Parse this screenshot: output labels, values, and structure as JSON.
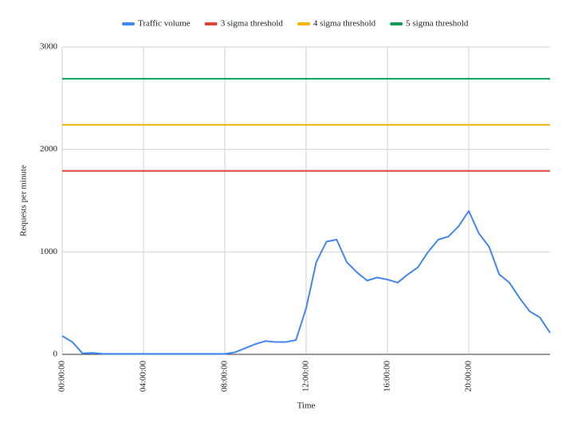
{
  "chart_data": {
    "type": "line",
    "x_label": "Time",
    "y_label": "Requests per minute",
    "x": [
      0,
      0.5,
      1,
      1.5,
      2,
      2.5,
      3,
      3.5,
      4,
      4.5,
      5,
      5.5,
      6,
      6.5,
      7,
      7.5,
      8,
      8.5,
      9,
      9.5,
      10,
      10.5,
      11,
      11.5,
      12,
      12.5,
      13,
      13.5,
      14,
      14.5,
      15,
      15.5,
      16,
      16.5,
      17,
      17.5,
      18,
      18.5,
      19,
      19.5,
      20,
      20.5,
      21,
      21.5,
      22,
      22.5,
      23,
      23.5,
      24
    ],
    "series": [
      {
        "name": "Traffic volume",
        "color": "#4285f4",
        "values": [
          180,
          120,
          10,
          15,
          5,
          5,
          5,
          5,
          5,
          5,
          5,
          5,
          5,
          5,
          5,
          5,
          5,
          20,
          60,
          100,
          130,
          120,
          120,
          140,
          450,
          900,
          1100,
          1120,
          900,
          800,
          720,
          750,
          730,
          700,
          780,
          850,
          1000,
          1120,
          1150,
          1250,
          1400,
          1180,
          1050,
          780,
          700,
          550,
          420,
          360,
          210
        ]
      },
      {
        "name": "3 sigma threshold",
        "color": "#db4437",
        "values": [
          1790,
          1790,
          1790,
          1790,
          1790,
          1790,
          1790,
          1790,
          1790,
          1790,
          1790,
          1790,
          1790,
          1790,
          1790,
          1790,
          1790,
          1790,
          1790,
          1790,
          1790,
          1790,
          1790,
          1790,
          1790,
          1790,
          1790,
          1790,
          1790,
          1790,
          1790,
          1790,
          1790,
          1790,
          1790,
          1790,
          1790,
          1790,
          1790,
          1790,
          1790,
          1790,
          1790,
          1790,
          1790,
          1790,
          1790,
          1790,
          1790
        ]
      },
      {
        "name": "4 sigma threshold",
        "color": "#f4b400",
        "values": [
          2240,
          2240,
          2240,
          2240,
          2240,
          2240,
          2240,
          2240,
          2240,
          2240,
          2240,
          2240,
          2240,
          2240,
          2240,
          2240,
          2240,
          2240,
          2240,
          2240,
          2240,
          2240,
          2240,
          2240,
          2240,
          2240,
          2240,
          2240,
          2240,
          2240,
          2240,
          2240,
          2240,
          2240,
          2240,
          2240,
          2240,
          2240,
          2240,
          2240,
          2240,
          2240,
          2240,
          2240,
          2240,
          2240,
          2240,
          2240,
          2240
        ]
      },
      {
        "name": "5 sigma threshold",
        "color": "#0f9d58",
        "values": [
          2690,
          2690,
          2690,
          2690,
          2690,
          2690,
          2690,
          2690,
          2690,
          2690,
          2690,
          2690,
          2690,
          2690,
          2690,
          2690,
          2690,
          2690,
          2690,
          2690,
          2690,
          2690,
          2690,
          2690,
          2690,
          2690,
          2690,
          2690,
          2690,
          2690,
          2690,
          2690,
          2690,
          2690,
          2690,
          2690,
          2690,
          2690,
          2690,
          2690,
          2690,
          2690,
          2690,
          2690,
          2690,
          2690,
          2690,
          2690,
          2690
        ]
      }
    ],
    "xlim": [
      0,
      24
    ],
    "xticks": [
      {
        "value": 0,
        "label": "00:00:00"
      },
      {
        "value": 4,
        "label": "04:00:00"
      },
      {
        "value": 8,
        "label": "08:00:00"
      },
      {
        "value": 12,
        "label": "12:00:00"
      },
      {
        "value": 16,
        "label": "16:00:00"
      },
      {
        "value": 20,
        "label": "20:00:00"
      }
    ],
    "ylim": [
      0,
      3000
    ],
    "yticks": [
      0,
      1000,
      2000,
      3000
    ],
    "grid": true,
    "legend": "top"
  }
}
